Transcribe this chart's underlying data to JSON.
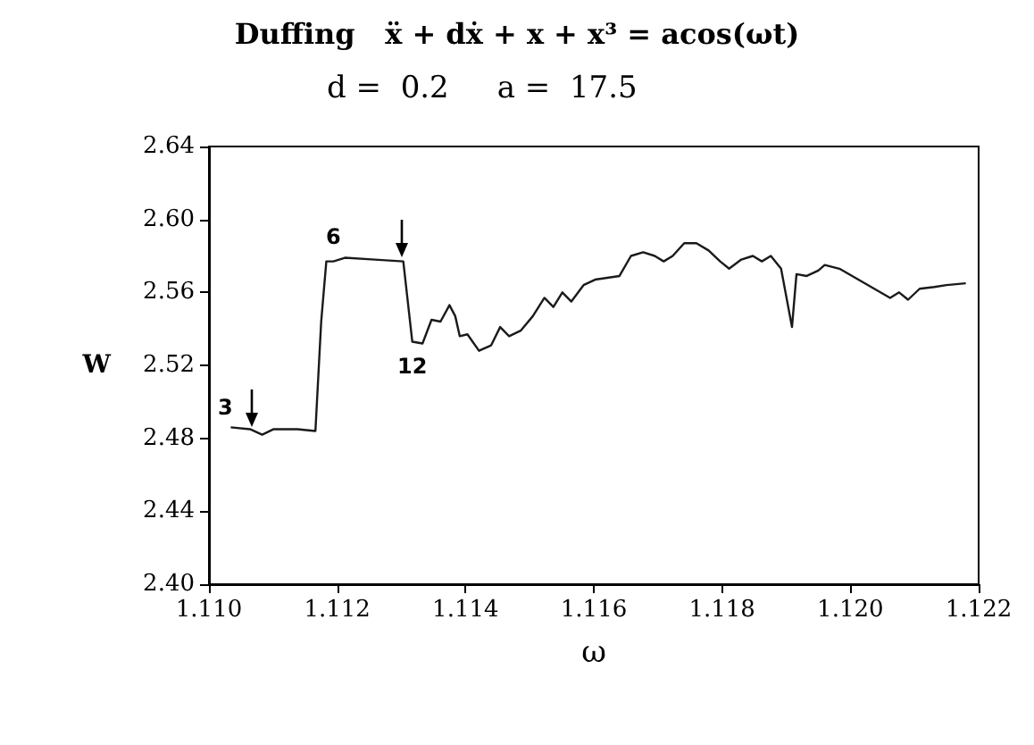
{
  "chart_data": {
    "type": "line",
    "title": "Duffing   ẍ + dẋ + x + x³ = acos(ωt)",
    "subtitle": "d =  0.2     a =  17.5",
    "xlabel": "ω",
    "ylabel": "W",
    "xlim": [
      1.11,
      1.122
    ],
    "ylim": [
      2.4,
      2.64
    ],
    "xticks": [
      {
        "value": 1.11,
        "label": "1.110"
      },
      1.112,
      1.114,
      1.116,
      1.118,
      {
        "value": 1.12,
        "label": "1.120"
      },
      1.122
    ],
    "yticks": [
      {
        "value": 2.4,
        "label": "2.40"
      },
      2.44,
      2.48,
      2.52,
      2.56,
      {
        "value": 2.6,
        "label": "2.60"
      },
      2.64
    ],
    "grid": false,
    "marker": "none",
    "line_style": "solid",
    "annotations": [
      {
        "text": "3",
        "x": 1.11034,
        "y": 2.486
      },
      {
        "text": "6",
        "x": 1.11194,
        "y": 2.577
      },
      {
        "text": "12",
        "x": 1.11317,
        "y": 2.533
      }
    ],
    "series": [
      {
        "color": "#1a1a1a",
        "x": [
          1.11034,
          1.11064,
          1.11083,
          1.11101,
          1.11138,
          1.11166,
          1.11175,
          1.11183,
          1.11194,
          1.11212,
          1.11259,
          1.11303,
          1.11317,
          1.11333,
          1.11347,
          1.11361,
          1.11375,
          1.11384,
          1.11391,
          1.11403,
          1.11421,
          1.1144,
          1.11454,
          1.11468,
          1.11486,
          1.11505,
          1.11523,
          1.11537,
          1.11551,
          1.11565,
          1.11584,
          1.11602,
          1.1164,
          1.11658,
          1.11677,
          1.11695,
          1.11709,
          1.11723,
          1.11741,
          1.1176,
          1.11779,
          1.11797,
          1.11811,
          1.1183,
          1.11848,
          1.11862,
          1.11876,
          1.11892,
          1.11909,
          1.11916,
          1.11932,
          1.1195,
          1.1196,
          1.11983,
          1.12062,
          1.12076,
          1.1209,
          1.12108,
          1.12131,
          1.1215,
          1.1218
        ],
        "values": [
          2.486,
          2.485,
          2.482,
          2.485,
          2.485,
          2.484,
          2.544,
          2.577,
          2.577,
          2.579,
          2.578,
          2.577,
          2.533,
          2.532,
          2.545,
          2.544,
          2.553,
          2.547,
          2.536,
          2.537,
          2.528,
          2.531,
          2.541,
          2.536,
          2.539,
          2.547,
          2.557,
          2.552,
          2.56,
          2.555,
          2.564,
          2.567,
          2.569,
          2.58,
          2.582,
          2.58,
          2.577,
          2.58,
          2.587,
          2.587,
          2.583,
          2.577,
          2.573,
          2.578,
          2.58,
          2.577,
          2.58,
          2.573,
          2.541,
          2.57,
          2.569,
          2.572,
          2.575,
          2.573,
          2.557,
          2.56,
          2.556,
          2.562,
          2.563,
          2.564,
          2.565
        ]
      }
    ]
  }
}
